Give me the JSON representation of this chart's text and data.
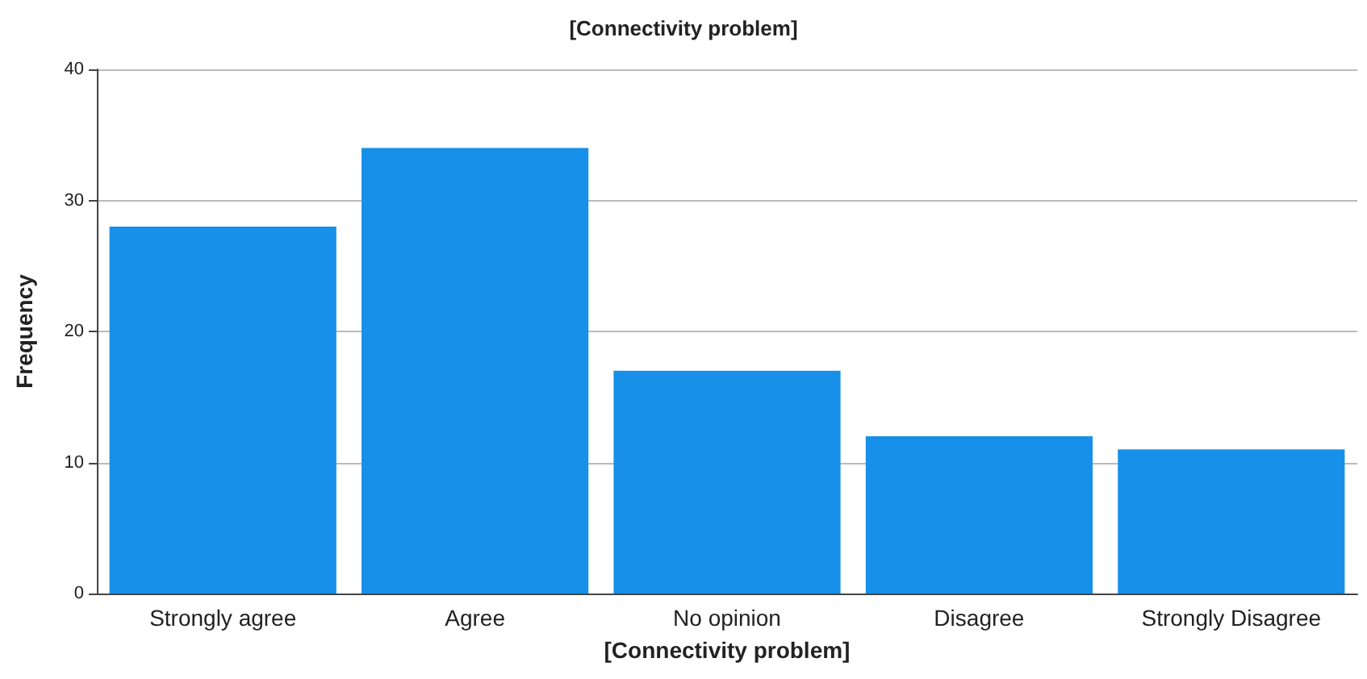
{
  "chart_data": {
    "type": "bar",
    "title": "[Connectivity problem]",
    "xlabel": "[Connectivity problem]",
    "ylabel": "Frequency",
    "categories": [
      "Strongly agree",
      "Agree",
      "No opinion",
      "Disagree",
      "Strongly Disagree"
    ],
    "values": [
      28,
      34,
      17,
      12,
      11
    ],
    "color": "#1690e8",
    "ylim": [
      0,
      40
    ],
    "yticks": [
      0,
      10,
      20,
      30,
      40
    ],
    "grid": "y"
  }
}
